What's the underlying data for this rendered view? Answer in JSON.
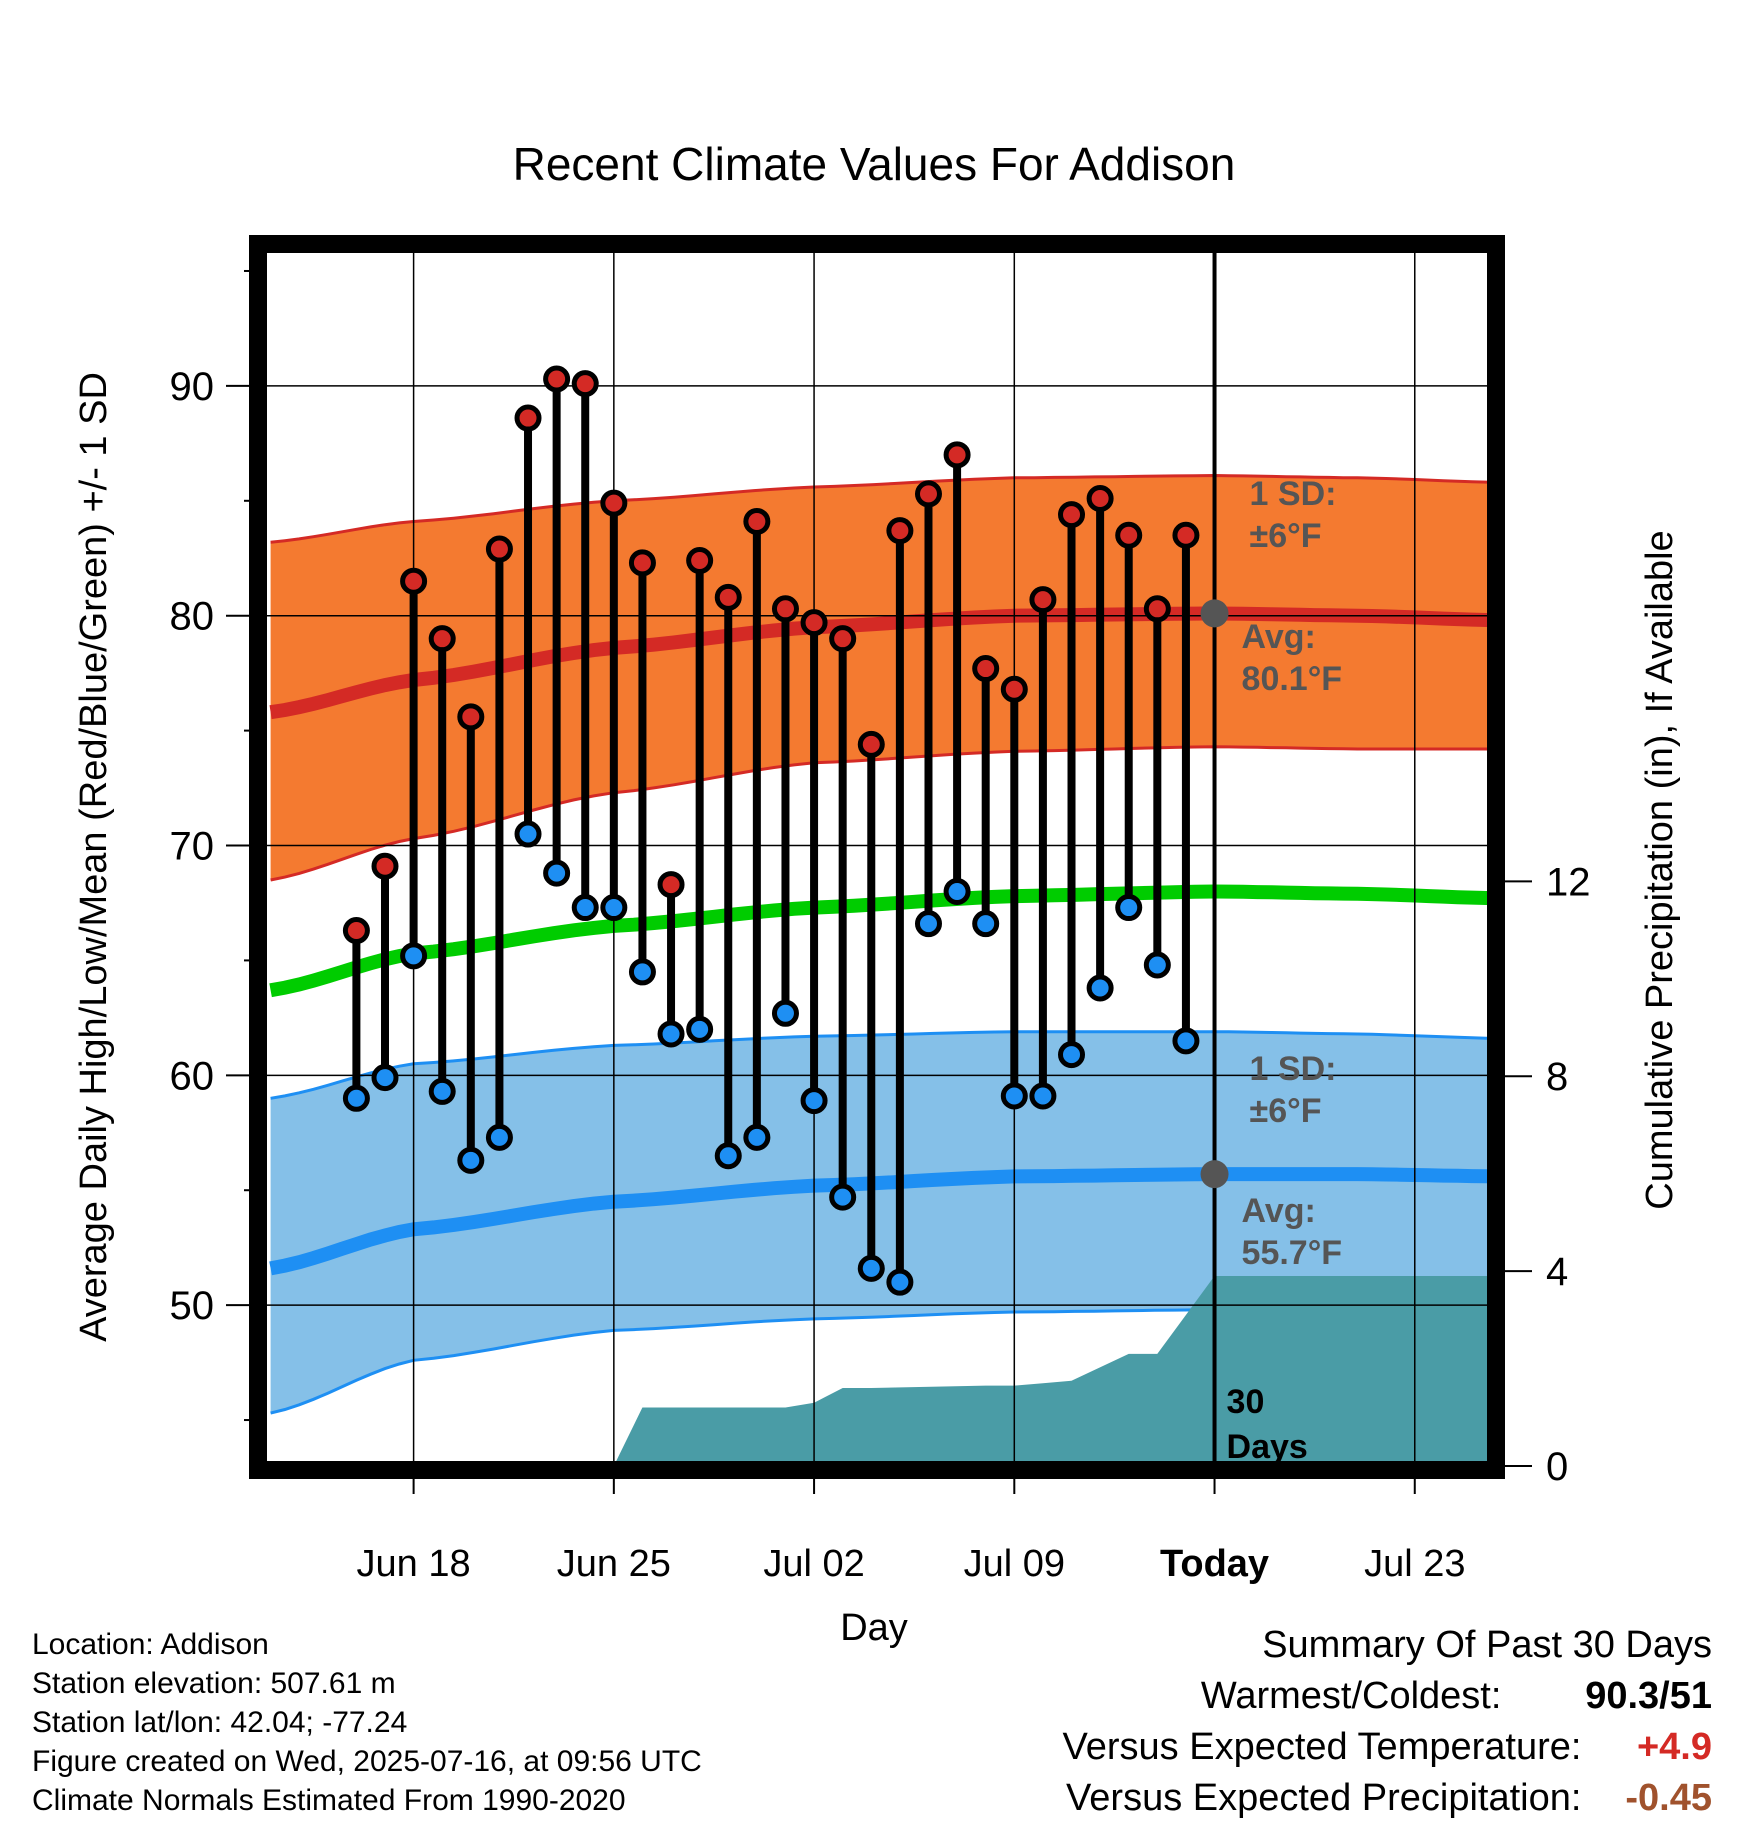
{
  "chart_data": {
    "type": "line",
    "title": "Recent Climate Values For Addison",
    "xlabel": "Day",
    "ylabel_left": "Average Daily High/Low/Mean (Red/Blue/Green) +/- 1 SD",
    "ylabel_right": "Cumulative Precipitation (in), If Available",
    "x_ticks": [
      "Jun 18",
      "Jun 25",
      "Jul 02",
      "Jul 09",
      "Today",
      "Jul 23"
    ],
    "y_left_ticks": [
      "50",
      "60",
      "70",
      "80",
      "90"
    ],
    "y_right_ticks": [
      "0",
      "4",
      "8",
      "12"
    ],
    "y_left_range": [
      43,
      96
    ],
    "y_right_range": [
      0,
      25
    ],
    "x_range_days": [
      -33.3,
      9.7
    ],
    "today_label": "30 Days",
    "annotations": {
      "high_sd": "1 SD:",
      "high_sd_value": "±6°F",
      "high_avg": "Avg:",
      "high_avg_value": "80.1°F",
      "low_sd": "1 SD:",
      "low_sd_value": "±6°F",
      "low_avg": "Avg:",
      "low_avg_value": "55.7°F"
    },
    "daily_highs": [
      66.3,
      69.1,
      81.5,
      79.0,
      75.6,
      82.9,
      88.6,
      90.3,
      90.1,
      84.9,
      82.3,
      68.3,
      82.4,
      80.8,
      84.1,
      80.3,
      79.7,
      79.0,
      74.4,
      83.7,
      85.3,
      87.0,
      77.7,
      76.8,
      80.7,
      84.4,
      85.1,
      83.5,
      80.3,
      83.5
    ],
    "daily_lows": [
      59.0,
      59.9,
      65.2,
      59.3,
      56.3,
      57.3,
      70.5,
      68.8,
      67.3,
      67.3,
      64.5,
      61.8,
      62.0,
      56.5,
      57.3,
      62.7,
      58.9,
      54.7,
      51.6,
      51.0,
      66.6,
      68.0,
      66.6,
      59.1,
      59.1,
      60.9,
      63.8,
      67.3,
      64.8,
      61.5
    ],
    "normal_high": {
      "x": [
        -33,
        -28,
        -21,
        -14,
        -7,
        0,
        5,
        10
      ],
      "mean": [
        75.8,
        77.2,
        78.6,
        79.5,
        80.0,
        80.1,
        80.0,
        79.8
      ],
      "upper": [
        83.2,
        84.1,
        85.0,
        85.6,
        86.0,
        86.1,
        86.0,
        85.8
      ],
      "lower": [
        68.5,
        70.3,
        72.3,
        73.6,
        74.1,
        74.3,
        74.2,
        74.2
      ]
    },
    "normal_mean": {
      "x": [
        -33,
        -28,
        -21,
        -14,
        -7,
        0,
        5,
        10
      ],
      "mean": [
        63.7,
        65.3,
        66.5,
        67.3,
        67.8,
        68.0,
        67.9,
        67.7
      ]
    },
    "normal_low": {
      "x": [
        -33,
        -28,
        -21,
        -14,
        -7,
        0,
        5,
        10
      ],
      "mean": [
        51.6,
        53.3,
        54.5,
        55.2,
        55.6,
        55.7,
        55.7,
        55.6
      ],
      "upper": [
        59.0,
        60.5,
        61.3,
        61.7,
        61.9,
        61.9,
        61.8,
        61.6
      ],
      "lower": [
        45.3,
        47.6,
        48.9,
        49.4,
        49.7,
        49.8,
        49.8,
        49.7
      ]
    },
    "precip": {
      "x": [
        -33,
        -26,
        -21,
        -20,
        -15,
        -14,
        -13,
        -12,
        -8,
        -7,
        -6,
        -5,
        -3,
        -2,
        -1,
        0,
        9.7
      ],
      "cumulative": [
        0,
        0,
        0,
        1.2,
        1.2,
        1.3,
        1.6,
        1.6,
        1.65,
        1.65,
        1.7,
        1.75,
        2.3,
        2.3,
        3.1,
        3.9,
        3.9
      ]
    },
    "today_marker_high": 80.1,
    "today_marker_low": 55.7
  },
  "info": {
    "location": "Location: Addison",
    "elevation": "Station elevation: 507.61 m",
    "latlon": "Station lat/lon: 42.04; -77.24",
    "created": "Figure created on Wed, 2025-07-16, at 09:56 UTC",
    "normals": "Climate Normals Estimated From 1990-2020"
  },
  "summary": {
    "title": "Summary Of Past 30 Days",
    "warmest_label": "Warmest/Coldest:",
    "warmest_value": "90.3/51",
    "temp_label": "Versus Expected Temperature:",
    "temp_value": "+4.9",
    "precip_label": "Versus Expected Precipitation:",
    "precip_value": "-0.45"
  },
  "colors": {
    "high_band": "#f47a30",
    "high_line": "#d42a25",
    "low_band": "#85c0e8",
    "low_line": "#1e8ff3",
    "mean_line": "#00cc00",
    "precip": "#4a9ca6",
    "marker_grey": "#555555",
    "temp_positive": "#d42a25",
    "precip_negative": "#a0522d"
  }
}
